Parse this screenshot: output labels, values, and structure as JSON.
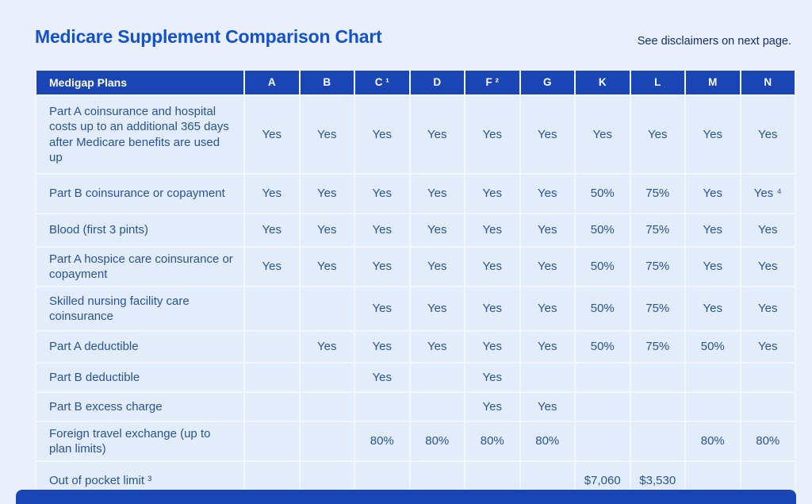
{
  "page": {
    "title": "Medicare Supplement Comparison Chart",
    "note": "See disclaimers on next page."
  },
  "table": {
    "first_header": "Medigap Plans",
    "columns": [
      "A",
      "B",
      "C ¹",
      "D",
      "F ²",
      "G",
      "K",
      "L",
      "M",
      "N"
    ],
    "rows": [
      {
        "label": "Part A coinsurance and hospital costs up to an additional 365 days after Medicare benefits are used up",
        "values": [
          "Yes",
          "Yes",
          "Yes",
          "Yes",
          "Yes",
          "Yes",
          "Yes",
          "Yes",
          "Yes",
          "Yes"
        ]
      },
      {
        "label": "Part B coinsurance or copayment",
        "values": [
          "Yes",
          "Yes",
          "Yes",
          "Yes",
          "Yes",
          "Yes",
          "50%",
          "75%",
          "Yes",
          "Yes ⁴"
        ]
      },
      {
        "label": "Blood (first 3 pints)",
        "values": [
          "Yes",
          "Yes",
          "Yes",
          "Yes",
          "Yes",
          "Yes",
          "50%",
          "75%",
          "Yes",
          "Yes"
        ]
      },
      {
        "label": "Part A hospice care coinsurance or copayment",
        "values": [
          "Yes",
          "Yes",
          "Yes",
          "Yes",
          "Yes",
          "Yes",
          "50%",
          "75%",
          "Yes",
          "Yes"
        ]
      },
      {
        "label": "Skilled nursing facility care coinsurance",
        "values": [
          "",
          "",
          "Yes",
          "Yes",
          "Yes",
          "Yes",
          "50%",
          "75%",
          "Yes",
          "Yes"
        ]
      },
      {
        "label": "Part A deductible",
        "values": [
          "",
          "Yes",
          "Yes",
          "Yes",
          "Yes",
          "Yes",
          "50%",
          "75%",
          "50%",
          "Yes"
        ]
      },
      {
        "label": "Part B deductible",
        "values": [
          "",
          "",
          "Yes",
          "",
          "Yes",
          "",
          "",
          "",
          "",
          ""
        ]
      },
      {
        "label": "Part B excess charge",
        "values": [
          "",
          "",
          "",
          "",
          "Yes",
          "Yes",
          "",
          "",
          "",
          ""
        ]
      },
      {
        "label": "Foreign travel exchange (up to plan limits)",
        "values": [
          "",
          "",
          "80%",
          "80%",
          "80%",
          "80%",
          "",
          "",
          "80%",
          "80%"
        ]
      },
      {
        "label": "Out of pocket limit ³",
        "values": [
          "",
          "",
          "",
          "",
          "",
          "",
          "$7,060",
          "$3,530",
          "",
          ""
        ]
      }
    ]
  },
  "colors": {
    "page_bg": "#e9effc",
    "header_bg": "#1a45b5",
    "title_text": "#1452c9",
    "note_text": "#11306b",
    "cell_text": "#275594",
    "cell_bg": "#e3ecfa",
    "grid_line": "#f2f6fd"
  }
}
